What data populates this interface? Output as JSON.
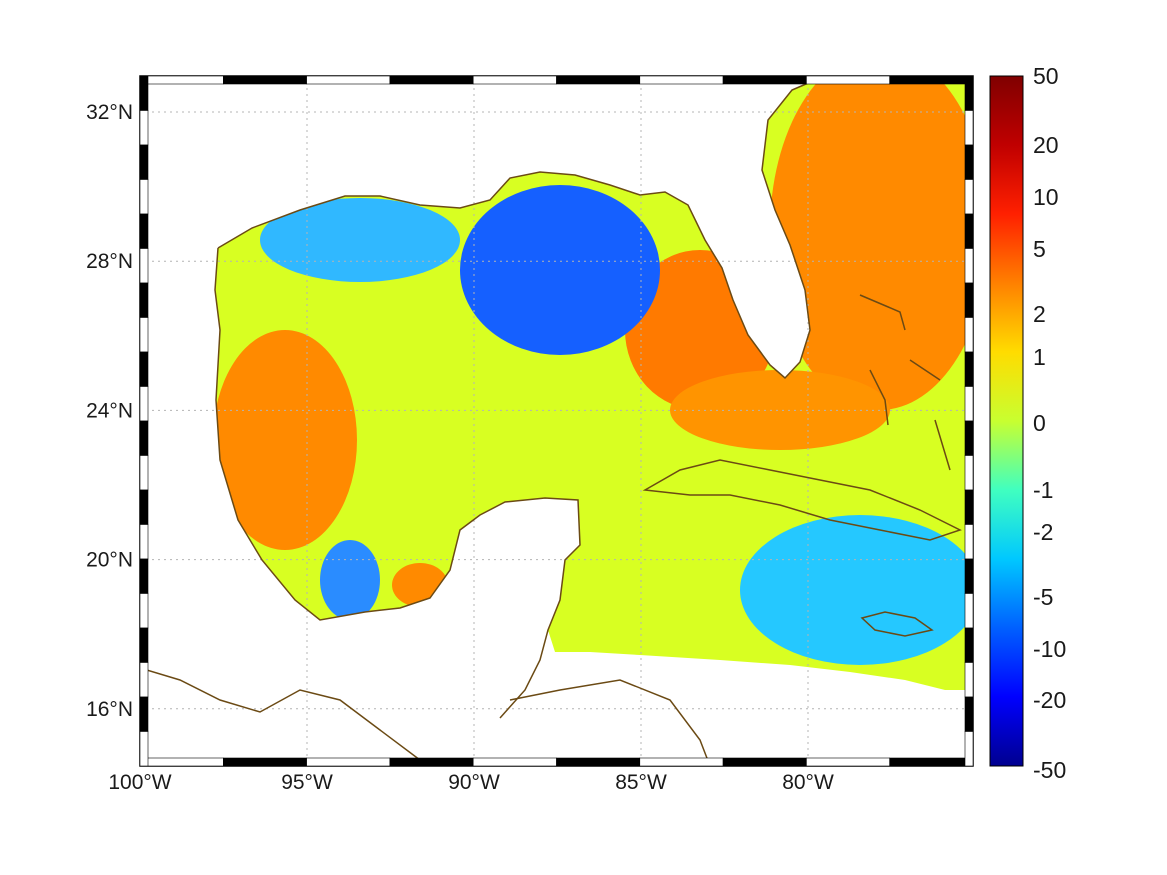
{
  "map": {
    "type": "gridded-field-map",
    "lon_range_deg": [
      -100,
      -75
    ],
    "lat_range_deg": [
      14.3,
      33
    ],
    "frame": "alternating-black-white-border",
    "grid": "dashed",
    "coastline_color": "#6b4a14",
    "lon_ticks": [
      {
        "value": -100,
        "label": "100°W"
      },
      {
        "value": -95,
        "label": "95°W"
      },
      {
        "value": -90,
        "label": "90°W"
      },
      {
        "value": -85,
        "label": "85°W"
      },
      {
        "value": -80,
        "label": "80°W"
      }
    ],
    "lat_ticks": [
      {
        "value": 32,
        "label": "32°N"
      },
      {
        "value": 28,
        "label": "28°N"
      },
      {
        "value": 24,
        "label": "24°N"
      },
      {
        "value": 20,
        "label": "20°N"
      },
      {
        "value": 16,
        "label": "16°N"
      }
    ]
  },
  "colorbar": {
    "colormap": "jet",
    "scale": "nonlinear",
    "colors": [
      "#00008f",
      "#0000ff",
      "#0060ff",
      "#00c8ff",
      "#40ffc0",
      "#c8ff30",
      "#ffdc00",
      "#ff8000",
      "#ff2000",
      "#c00000",
      "#800000"
    ],
    "ticks": [
      {
        "value": 50,
        "label": "50"
      },
      {
        "value": 20,
        "label": "20"
      },
      {
        "value": 10,
        "label": "10"
      },
      {
        "value": 5,
        "label": "5"
      },
      {
        "value": 2,
        "label": "2"
      },
      {
        "value": 1,
        "label": "1"
      },
      {
        "value": 0,
        "label": "0"
      },
      {
        "value": -1,
        "label": "-1"
      },
      {
        "value": -2,
        "label": "-2"
      },
      {
        "value": -5,
        "label": "-5"
      },
      {
        "value": -10,
        "label": "-10"
      },
      {
        "value": -20,
        "label": "-20"
      },
      {
        "value": -50,
        "label": "-50"
      }
    ]
  },
  "field_regions": [
    {
      "name": "northern-gulf-low",
      "value": -8
    },
    {
      "name": "texas-shelf",
      "value": -2
    },
    {
      "name": "western-gulf-high",
      "value": 4
    },
    {
      "name": "loop-current-high",
      "value": 4
    },
    {
      "name": "florida-straits-high",
      "value": 3
    },
    {
      "name": "atlantic-high",
      "value": 5
    },
    {
      "name": "caribbean-low",
      "value": -2
    },
    {
      "name": "bay-of-campeche-low",
      "value": -3
    },
    {
      "name": "bay-of-campeche-high",
      "value": 4
    }
  ]
}
